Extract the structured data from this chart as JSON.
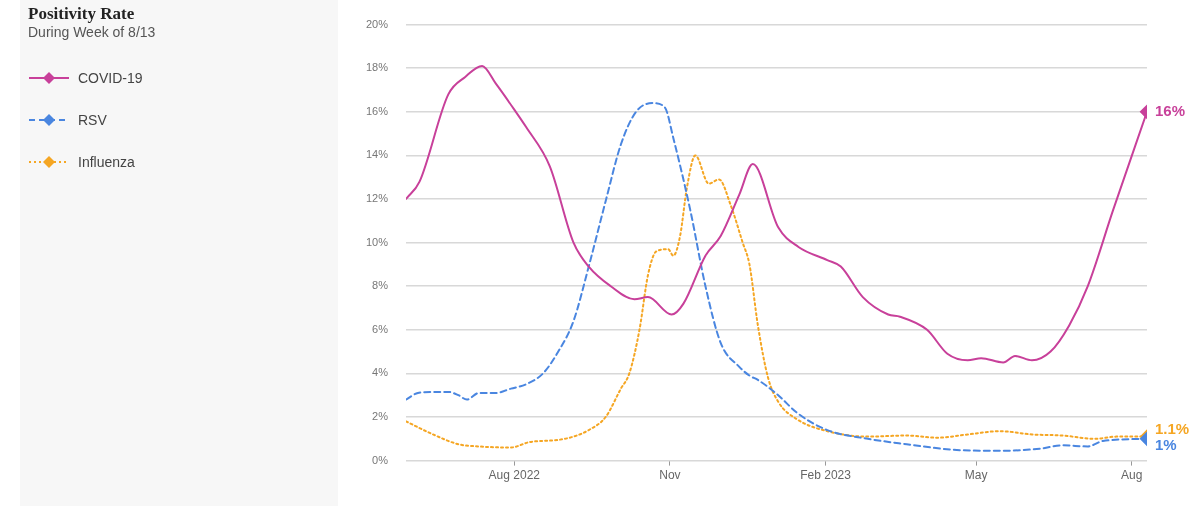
{
  "chart_data": {
    "type": "line",
    "title": "Positivity Rate",
    "subtitle": "During Week of 8/13",
    "series": [
      {
        "name": "COVID-19",
        "color": "#c8409a",
        "line_style": "solid",
        "x": [
          "2022-05-29",
          "2022-06-06",
          "2022-06-23",
          "2022-07-03",
          "2022-07-13",
          "2022-07-21",
          "2022-08-01",
          "2022-08-08",
          "2022-08-22",
          "2022-09-05",
          "2022-09-14",
          "2022-09-27",
          "2022-10-11",
          "2022-10-19",
          "2022-11-02",
          "2022-11-09",
          "2022-11-22",
          "2022-12-01",
          "2022-12-12",
          "2022-12-20",
          "2023-01-04",
          "2023-01-16",
          "2023-02-02",
          "2023-02-10",
          "2023-02-23",
          "2023-03-10",
          "2023-03-17",
          "2023-04-02",
          "2023-04-14",
          "2023-04-26",
          "2023-05-04",
          "2023-05-17",
          "2023-05-24",
          "2023-06-03",
          "2023-06-14",
          "2023-06-25",
          "2023-07-06",
          "2023-07-21",
          "2023-08-10"
        ],
        "values": [
          12.0,
          12.8,
          16.8,
          17.6,
          18.1,
          17.3,
          16.1,
          15.3,
          13.5,
          10.0,
          8.9,
          8.0,
          7.4,
          7.5,
          6.7,
          7.2,
          9.4,
          10.3,
          12.2,
          13.6,
          10.7,
          9.8,
          9.2,
          8.9,
          7.5,
          6.7,
          6.6,
          6.0,
          4.9,
          4.6,
          4.7,
          4.5,
          4.8,
          4.6,
          5.0,
          6.2,
          8.0,
          11.5,
          16.0
        ],
        "value_labels": [
          null,
          null,
          null,
          null,
          null,
          null,
          null,
          null,
          null,
          null,
          null,
          null,
          null,
          null,
          null,
          null,
          null,
          null,
          null,
          null,
          null,
          null,
          null,
          null,
          null,
          null,
          null,
          null,
          null,
          null,
          null,
          null,
          null,
          null,
          null,
          null,
          null,
          null,
          "16%"
        ]
      },
      {
        "name": "RSV",
        "color": "#4a86e0",
        "line_style": "dashed",
        "x": [
          "2022-05-29",
          "2022-06-05",
          "2022-06-14",
          "2022-06-23",
          "2022-06-29",
          "2022-07-04",
          "2022-07-11",
          "2022-07-21",
          "2022-07-30",
          "2022-08-08",
          "2022-08-18",
          "2022-08-27",
          "2022-09-05",
          "2022-09-14",
          "2022-09-24",
          "2022-10-03",
          "2022-10-12",
          "2022-10-22",
          "2022-10-29",
          "2022-11-03",
          "2022-11-13",
          "2022-11-22",
          "2022-12-01",
          "2022-12-12",
          "2022-12-18",
          "2022-12-23",
          "2023-01-04",
          "2023-01-15",
          "2023-02-02",
          "2023-02-26",
          "2023-03-21",
          "2023-04-17",
          "2023-05-15",
          "2023-06-08",
          "2023-06-21",
          "2023-07-06",
          "2023-07-15",
          "2023-08-10"
        ],
        "values": [
          2.8,
          3.1,
          3.15,
          3.15,
          3.0,
          2.8,
          3.1,
          3.1,
          3.3,
          3.5,
          4.0,
          5.0,
          6.4,
          8.9,
          11.9,
          14.5,
          16.0,
          16.4,
          16.2,
          14.8,
          11.5,
          8.0,
          5.4,
          4.3,
          3.9,
          3.7,
          3.0,
          2.2,
          1.4,
          1.0,
          0.75,
          0.5,
          0.45,
          0.55,
          0.7,
          0.65,
          0.9,
          1.0
        ],
        "value_labels": [
          null,
          null,
          null,
          null,
          null,
          null,
          null,
          null,
          null,
          null,
          null,
          null,
          null,
          null,
          null,
          null,
          null,
          null,
          null,
          null,
          null,
          null,
          null,
          null,
          null,
          null,
          null,
          null,
          null,
          null,
          null,
          null,
          null,
          null,
          null,
          null,
          null,
          "1%"
        ]
      },
      {
        "name": "Influenza",
        "color": "#f5a623",
        "line_style": "dotted",
        "x": [
          "2022-05-29",
          "2022-06-14",
          "2022-06-29",
          "2022-07-11",
          "2022-07-30",
          "2022-08-10",
          "2022-08-27",
          "2022-09-05",
          "2022-09-14",
          "2022-09-24",
          "2022-10-03",
          "2022-10-08",
          "2022-10-14",
          "2022-10-19",
          "2022-10-24",
          "2022-10-31",
          "2022-11-03",
          "2022-11-07",
          "2022-11-11",
          "2022-11-16",
          "2022-11-24",
          "2022-11-30",
          "2022-12-07",
          "2022-12-14",
          "2022-12-18",
          "2022-12-23",
          "2022-12-29",
          "2023-01-04",
          "2023-01-15",
          "2023-02-02",
          "2023-02-26",
          "2023-03-21",
          "2023-04-08",
          "2023-04-26",
          "2023-05-15",
          "2023-06-03",
          "2023-06-21",
          "2023-07-10",
          "2023-07-23",
          "2023-08-10"
        ],
        "values": [
          1.8,
          1.2,
          0.75,
          0.65,
          0.6,
          0.85,
          0.95,
          1.1,
          1.4,
          2.0,
          3.3,
          4.0,
          6.0,
          8.5,
          9.6,
          9.7,
          9.4,
          10.3,
          12.5,
          14.0,
          12.7,
          12.9,
          11.7,
          10.0,
          9.0,
          6.2,
          3.8,
          2.7,
          1.9,
          1.35,
          1.1,
          1.15,
          1.05,
          1.2,
          1.35,
          1.2,
          1.15,
          1.0,
          1.1,
          1.1
        ],
        "value_labels": [
          null,
          null,
          null,
          null,
          null,
          null,
          null,
          null,
          null,
          null,
          null,
          null,
          null,
          null,
          null,
          null,
          null,
          null,
          null,
          null,
          null,
          null,
          null,
          null,
          null,
          null,
          null,
          null,
          null,
          null,
          null,
          null,
          null,
          null,
          null,
          null,
          null,
          null,
          null,
          "1.1%"
        ]
      }
    ],
    "xlim": [
      "2022-05-29",
      "2023-08-10"
    ],
    "xticks": [
      {
        "value": "2022-08-01",
        "label": "Aug 2022"
      },
      {
        "value": "2022-11-01",
        "label": "Nov"
      },
      {
        "value": "2023-02-01",
        "label": "Feb 2023"
      },
      {
        "value": "2023-05-01",
        "label": "May"
      },
      {
        "value": "2023-08-01",
        "label": "Aug"
      }
    ],
    "ylim": [
      0,
      20
    ],
    "yticks": [
      {
        "value": 0,
        "label": "0%"
      },
      {
        "value": 2,
        "label": "2%"
      },
      {
        "value": 4,
        "label": "4%"
      },
      {
        "value": 6,
        "label": "6%"
      },
      {
        "value": 8,
        "label": "8%"
      },
      {
        "value": 10,
        "label": "10%"
      },
      {
        "value": 12,
        "label": "12%"
      },
      {
        "value": 14,
        "label": "14%"
      },
      {
        "value": 16,
        "label": "16%"
      },
      {
        "value": 18,
        "label": "18%"
      },
      {
        "value": 20,
        "label": "20%"
      }
    ],
    "grid": "y",
    "legend": "left"
  }
}
